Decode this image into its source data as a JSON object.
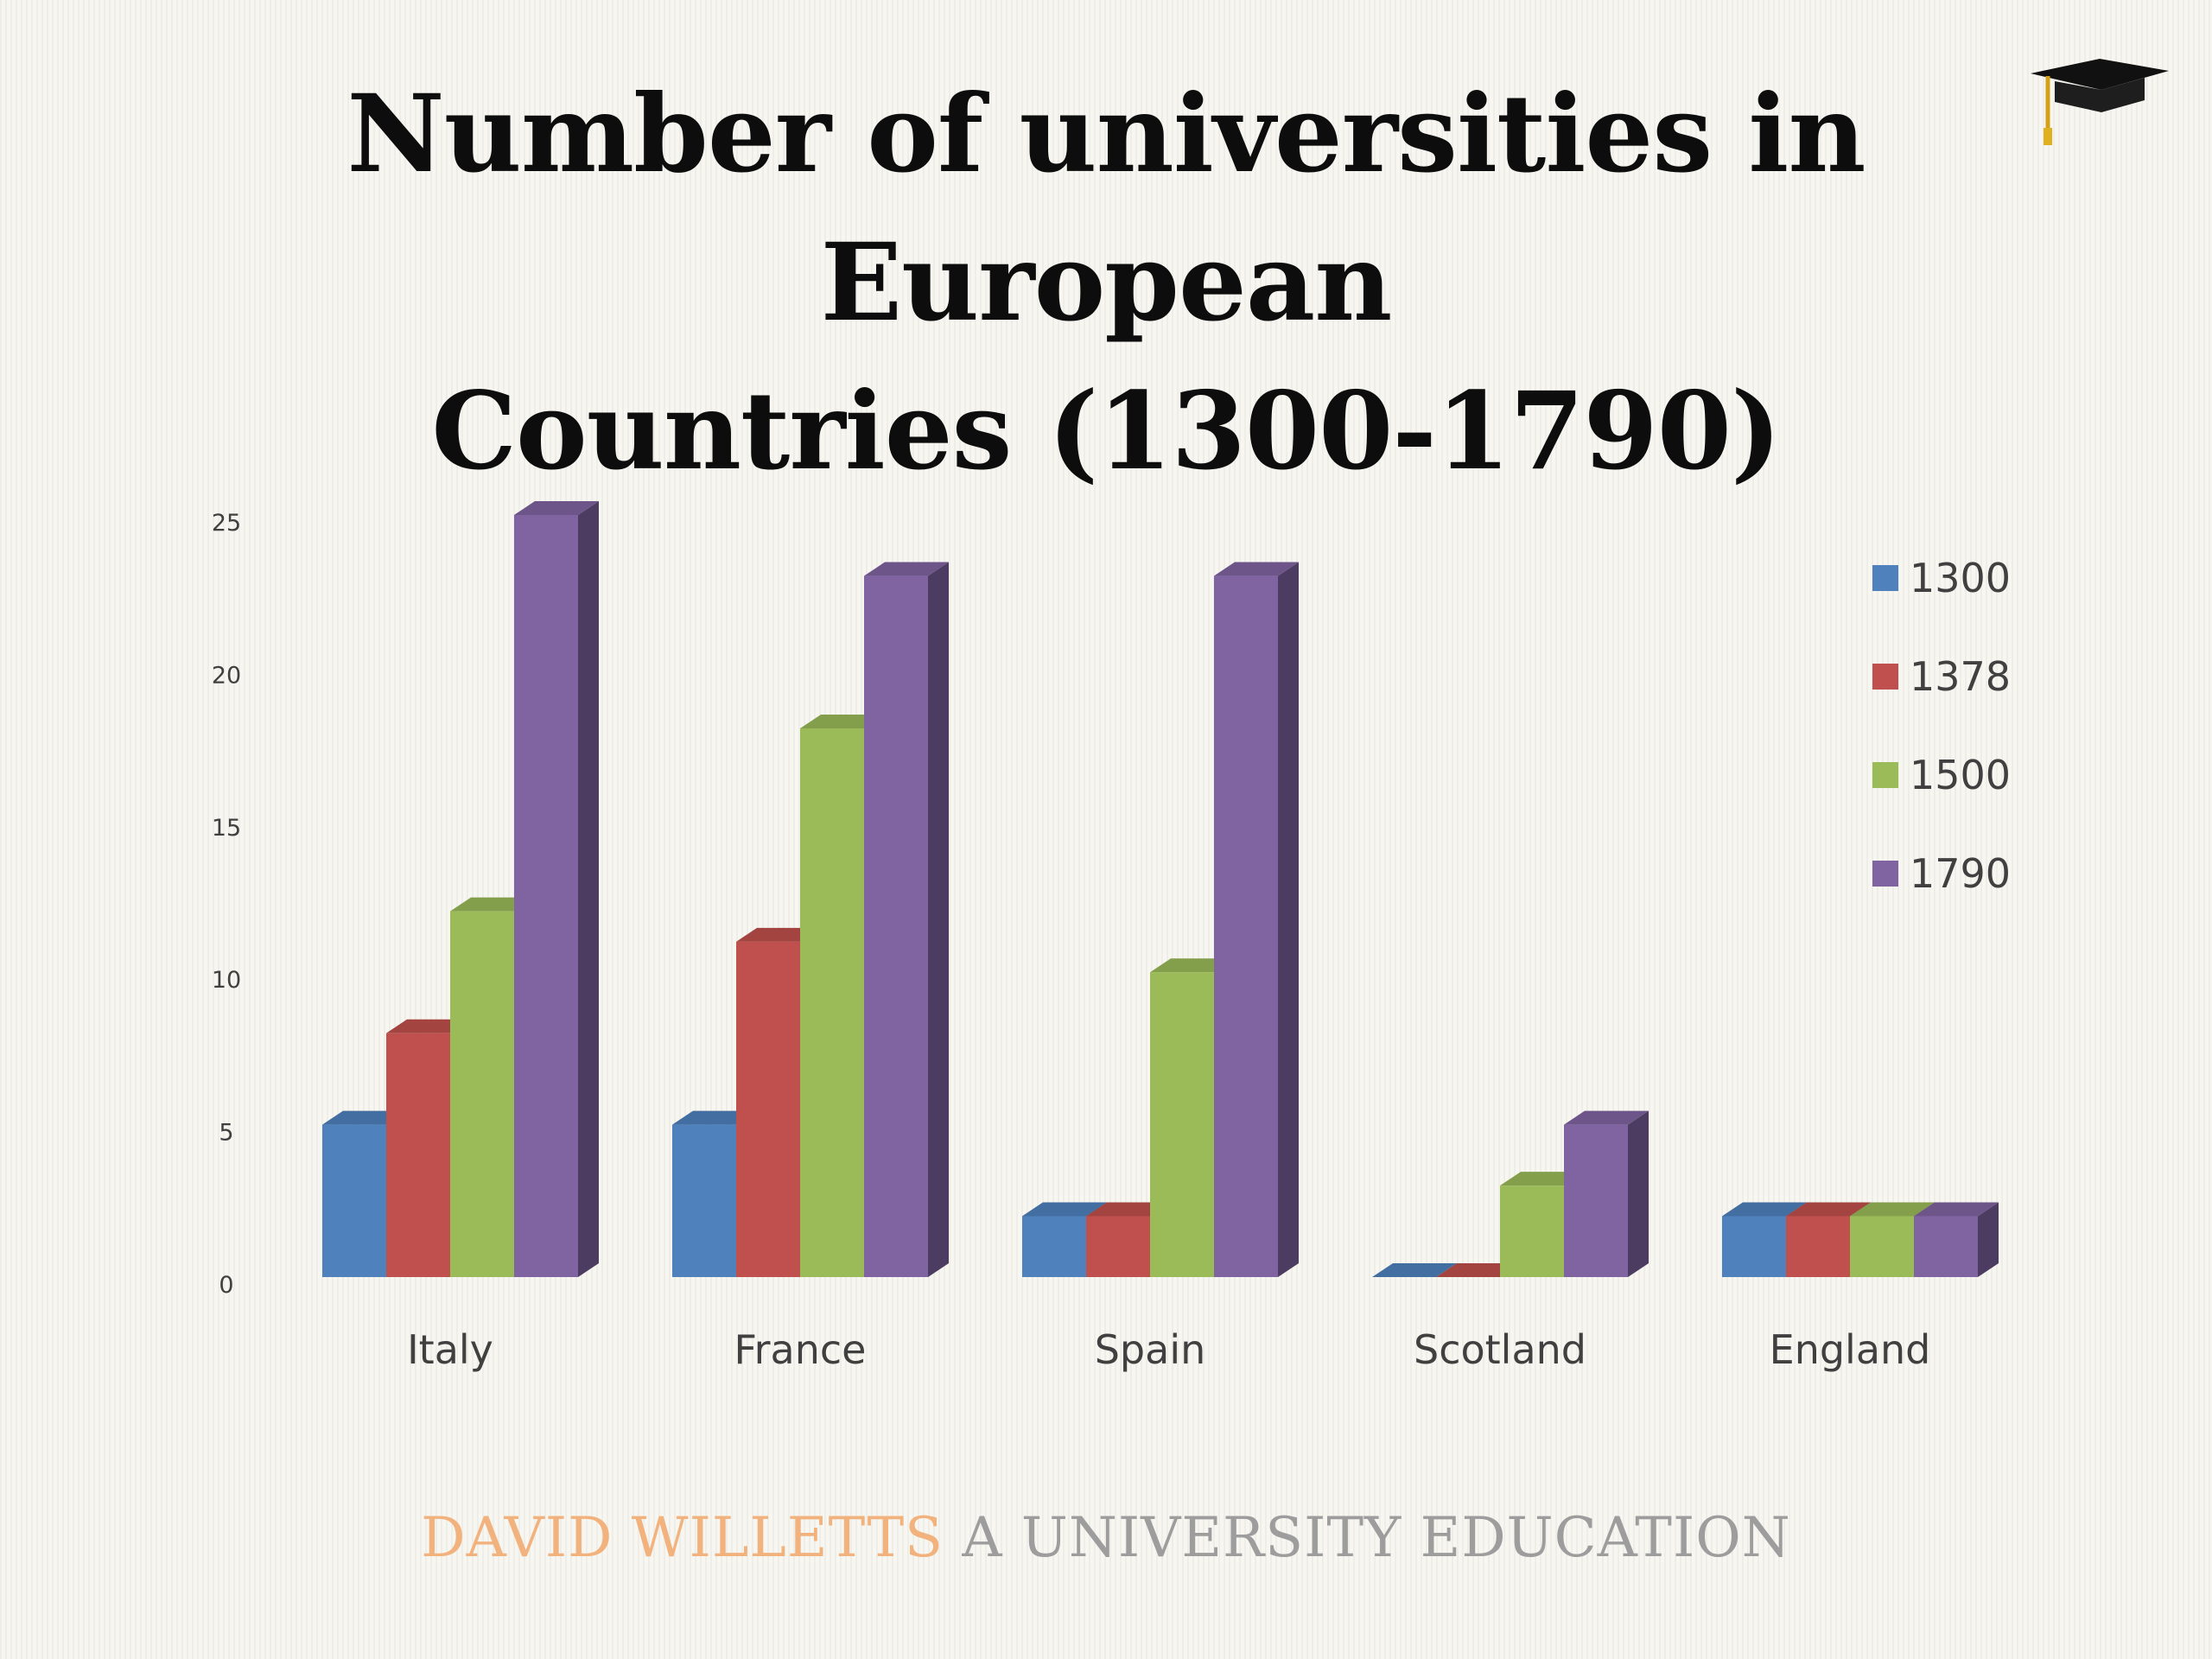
{
  "title_lines": [
    "Number of universities in European",
    "Countries (1300-1790)"
  ],
  "footer": {
    "author": "DAVID WILLETTS",
    "book": "A UNIVERSITY EDUCATION",
    "author_color": "#f2b27e",
    "book_color": "#9d9d9d"
  },
  "icon": "graduation-cap-icon",
  "chart_data": {
    "type": "bar",
    "style": "3d-clustered-column",
    "categories": [
      "Italy",
      "France",
      "Spain",
      "Scotland",
      "England"
    ],
    "series": [
      {
        "name": "1300",
        "color": "#4f81bd",
        "values": [
          5,
          5,
          2,
          0,
          2
        ]
      },
      {
        "name": "1378",
        "color": "#c0504d",
        "values": [
          8,
          11,
          2,
          0,
          2
        ]
      },
      {
        "name": "1500",
        "color": "#9bbb59",
        "values": [
          12,
          18,
          10,
          3,
          2
        ]
      },
      {
        "name": "1790",
        "color": "#8064a2",
        "values": [
          25,
          23,
          23,
          5,
          2
        ]
      }
    ],
    "yticks": [
      "0",
      "5",
      "10",
      "15",
      "20",
      "25"
    ],
    "ylim": [
      0,
      25
    ],
    "xlabel": "",
    "ylabel": "",
    "grid": false,
    "legend_position": "right"
  }
}
